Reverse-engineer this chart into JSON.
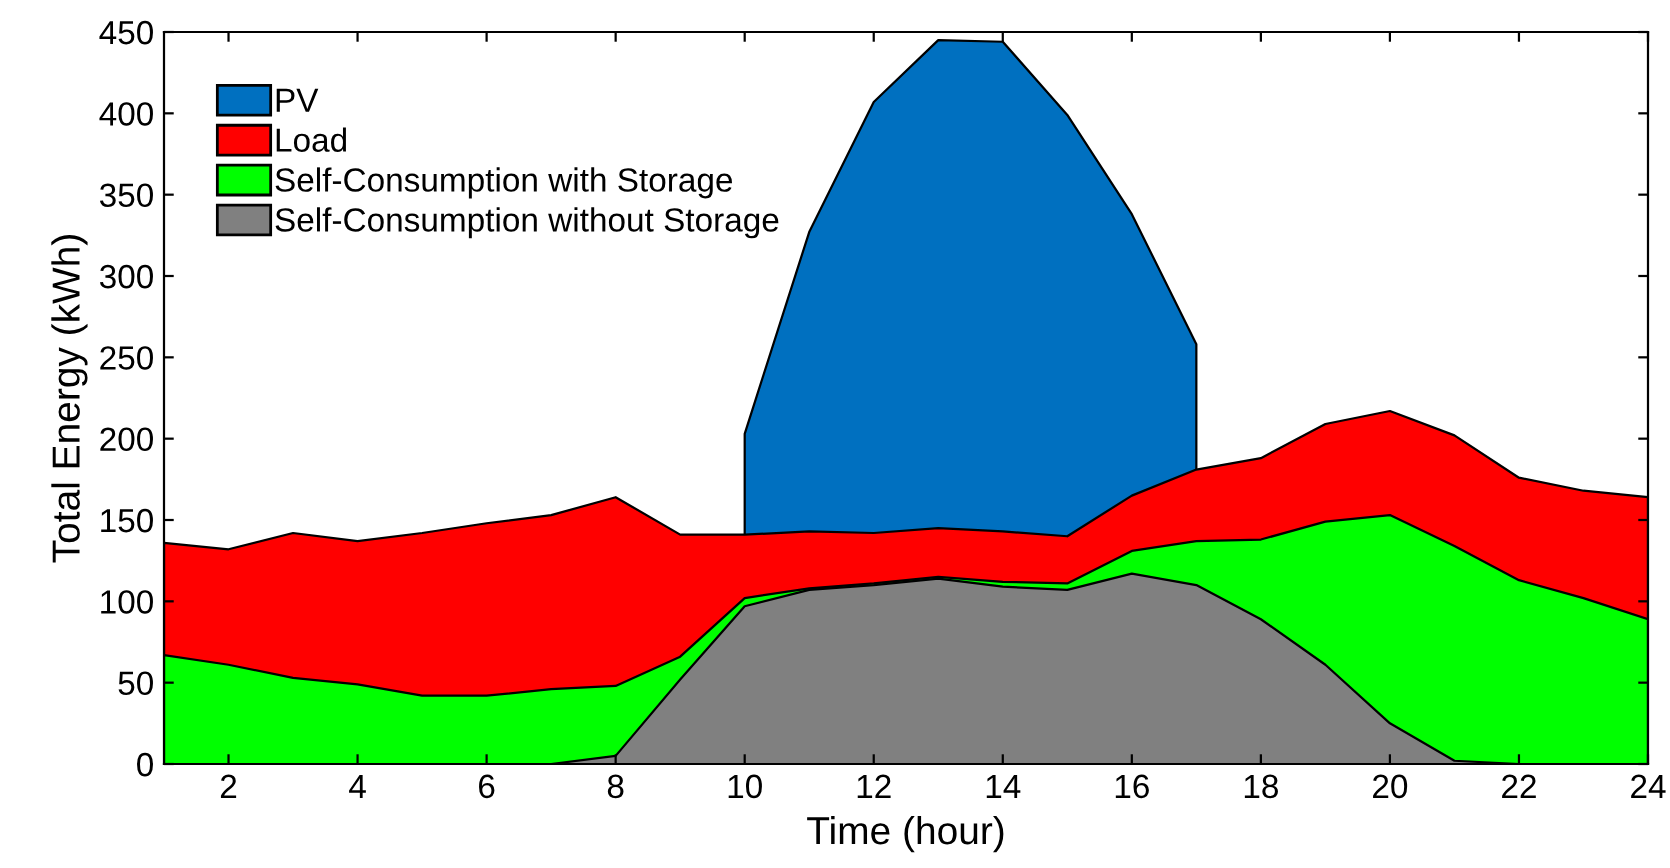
{
  "chart_data": {
    "type": "area",
    "xlabel": "Time (hour)",
    "ylabel": "Total Energy (kWh)",
    "x": [
      1,
      2,
      3,
      4,
      5,
      6,
      7,
      8,
      9,
      10,
      11,
      12,
      13,
      14,
      15,
      16,
      17,
      18,
      19,
      20,
      21,
      22,
      23,
      24
    ],
    "series": [
      {
        "name": "PV",
        "color": "#0070c0",
        "values": [
          null,
          null,
          null,
          null,
          null,
          null,
          null,
          null,
          null,
          203,
          327,
          407,
          445,
          444,
          399,
          338,
          258,
          null,
          null,
          null,
          null,
          null,
          null,
          null
        ]
      },
      {
        "name": "Load",
        "color": "#ff0000",
        "values": [
          136,
          132,
          142,
          137,
          142,
          148,
          153,
          164,
          141,
          141,
          143,
          142,
          145,
          143,
          140,
          165,
          181,
          188,
          209,
          217,
          202,
          176,
          168,
          164
        ]
      },
      {
        "name": "Self-Consumption with Storage",
        "color": "#00ff00",
        "values": [
          67,
          61,
          53,
          49,
          42,
          42,
          46,
          48,
          66,
          102,
          108,
          111,
          115,
          112,
          111,
          131,
          137,
          138,
          149,
          153,
          134,
          113,
          102,
          89
        ]
      },
      {
        "name": "Self-Consumption without Storage",
        "color": "#808080",
        "values": [
          0,
          0,
          0,
          0,
          0,
          0,
          0,
          5,
          52,
          97,
          107,
          110,
          114,
          109,
          107,
          117,
          110,
          89,
          61,
          25,
          2,
          0,
          0,
          0
        ]
      }
    ],
    "xlim": [
      1,
      24
    ],
    "xticks": [
      2,
      4,
      6,
      8,
      10,
      12,
      14,
      16,
      18,
      20,
      22,
      24
    ],
    "ylim": [
      0,
      450
    ],
    "yticks": [
      0,
      50,
      100,
      150,
      200,
      250,
      300,
      350,
      400,
      450
    ],
    "grid": false,
    "legend": "top left"
  }
}
